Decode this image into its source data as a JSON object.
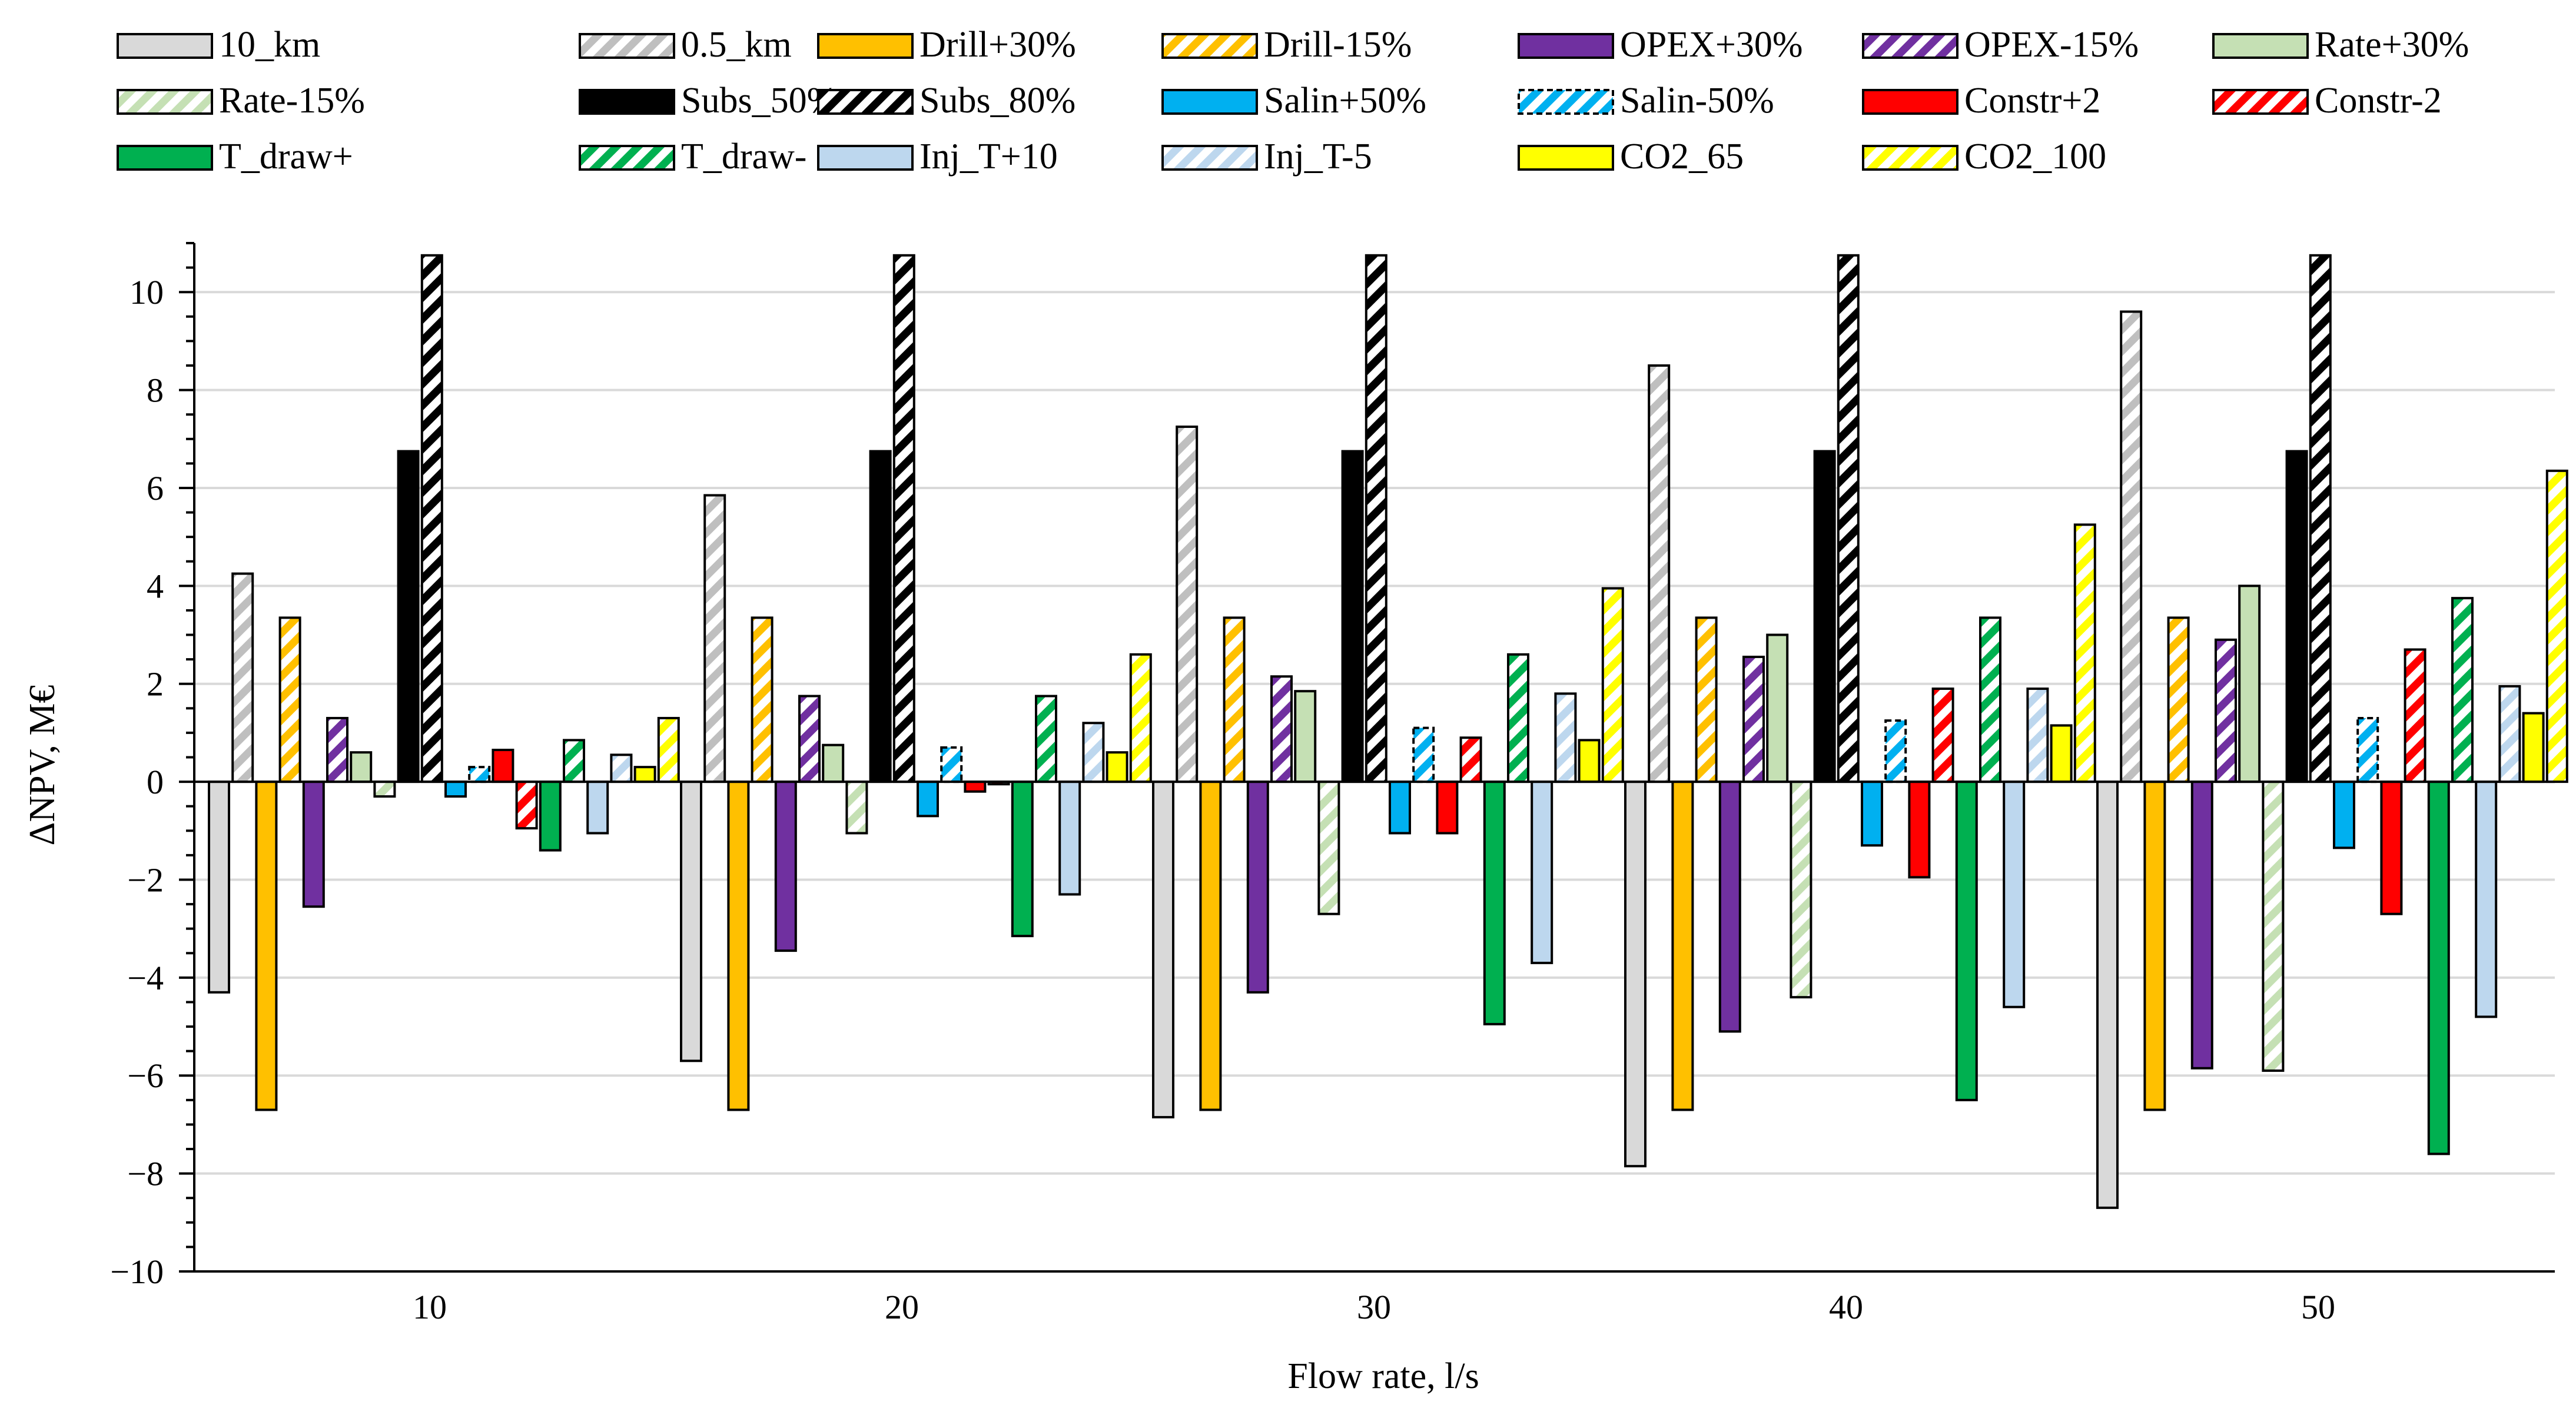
{
  "chart_data": {
    "type": "bar",
    "title": "",
    "xlabel": "Flow rate, l/s",
    "ylabel": "ΔNPV, M€",
    "ylim": [
      -10,
      11
    ],
    "yticks": [
      -10,
      -8,
      -6,
      -4,
      -2,
      0,
      2,
      4,
      6,
      8,
      10
    ],
    "ytick_labels": [
      "−10",
      "−8",
      "−6",
      "−4",
      "−2",
      "0",
      "2",
      "4",
      "6",
      "8",
      "10"
    ],
    "grid": true,
    "legend_position": "top",
    "categories": [
      "10",
      "20",
      "30",
      "40",
      "50"
    ],
    "series": [
      {
        "name": "10_km",
        "color": "#d9d9d9",
        "pattern": "solid",
        "values": [
          -4.3,
          -5.7,
          -6.85,
          -7.85,
          -8.7
        ]
      },
      {
        "name": "0.5_km",
        "color": "#bfbfbf",
        "pattern": "hatch",
        "values": [
          4.25,
          5.85,
          7.25,
          8.5,
          9.6
        ]
      },
      {
        "name": "Drill+30%",
        "color": "#ffc000",
        "pattern": "solid",
        "values": [
          -6.7,
          -6.7,
          -6.7,
          -6.7,
          -6.7
        ]
      },
      {
        "name": "Drill-15%",
        "color": "#ffc000",
        "pattern": "hatch",
        "values": [
          3.35,
          3.35,
          3.35,
          3.35,
          3.35
        ]
      },
      {
        "name": "OPEX+30%",
        "color": "#7030a0",
        "pattern": "solid",
        "values": [
          -2.55,
          -3.45,
          -4.3,
          -5.1,
          -5.85
        ]
      },
      {
        "name": "OPEX-15%",
        "color": "#7030a0",
        "pattern": "hatch",
        "values": [
          1.3,
          1.75,
          2.15,
          2.55,
          2.9
        ]
      },
      {
        "name": "Rate+30%",
        "color": "#c5e0b4",
        "pattern": "solid",
        "values": [
          0.6,
          0.75,
          1.85,
          3.0,
          4.0
        ]
      },
      {
        "name": "Rate-15%",
        "color": "#c5e0b4",
        "pattern": "hatch",
        "values": [
          -0.3,
          -1.05,
          -2.7,
          -4.4,
          -5.9
        ]
      },
      {
        "name": "Subs_50%",
        "color": "#000000",
        "pattern": "solid",
        "values": [
          6.75,
          6.75,
          6.75,
          6.75,
          6.75
        ]
      },
      {
        "name": "Subs_80%",
        "color": "#000000",
        "pattern": "hatch",
        "values": [
          10.75,
          10.75,
          10.75,
          10.75,
          10.75
        ]
      },
      {
        "name": "Salin+50%",
        "color": "#00b0f0",
        "pattern": "solid",
        "values": [
          -0.3,
          -0.7,
          -1.05,
          -1.3,
          -1.35
        ]
      },
      {
        "name": "Salin-50%",
        "color": "#00b0f0",
        "pattern": "hatch-dashed",
        "values": [
          0.3,
          0.7,
          1.1,
          1.25,
          1.3
        ]
      },
      {
        "name": "Constr+2",
        "color": "#ff0000",
        "pattern": "solid",
        "values": [
          0.65,
          -0.2,
          -1.05,
          -1.95,
          -2.7
        ]
      },
      {
        "name": "Constr-2",
        "color": "#ff0000",
        "pattern": "hatch",
        "values": [
          -0.95,
          -0.05,
          0.9,
          1.9,
          2.7
        ]
      },
      {
        "name": "T_draw+",
        "color": "#00b050",
        "pattern": "solid",
        "values": [
          -1.4,
          -3.15,
          -4.95,
          -6.5,
          -7.6
        ]
      },
      {
        "name": "T_draw-",
        "color": "#00b050",
        "pattern": "hatch",
        "values": [
          0.85,
          1.75,
          2.6,
          3.35,
          3.75
        ]
      },
      {
        "name": "Inj_T+10",
        "color": "#bdd7ee",
        "pattern": "solid",
        "values": [
          -1.05,
          -2.3,
          -3.7,
          -4.6,
          -4.8
        ]
      },
      {
        "name": "Inj_T-5",
        "color": "#bdd7ee",
        "pattern": "hatch",
        "values": [
          0.55,
          1.2,
          1.8,
          1.9,
          1.95
        ]
      },
      {
        "name": "CO2_65",
        "color": "#ffff00",
        "pattern": "solid",
        "values": [
          0.3,
          0.6,
          0.85,
          1.15,
          1.4
        ]
      },
      {
        "name": "CO2_100",
        "color": "#ffff00",
        "pattern": "hatch",
        "values": [
          1.3,
          2.6,
          3.95,
          5.25,
          6.35
        ]
      }
    ]
  }
}
